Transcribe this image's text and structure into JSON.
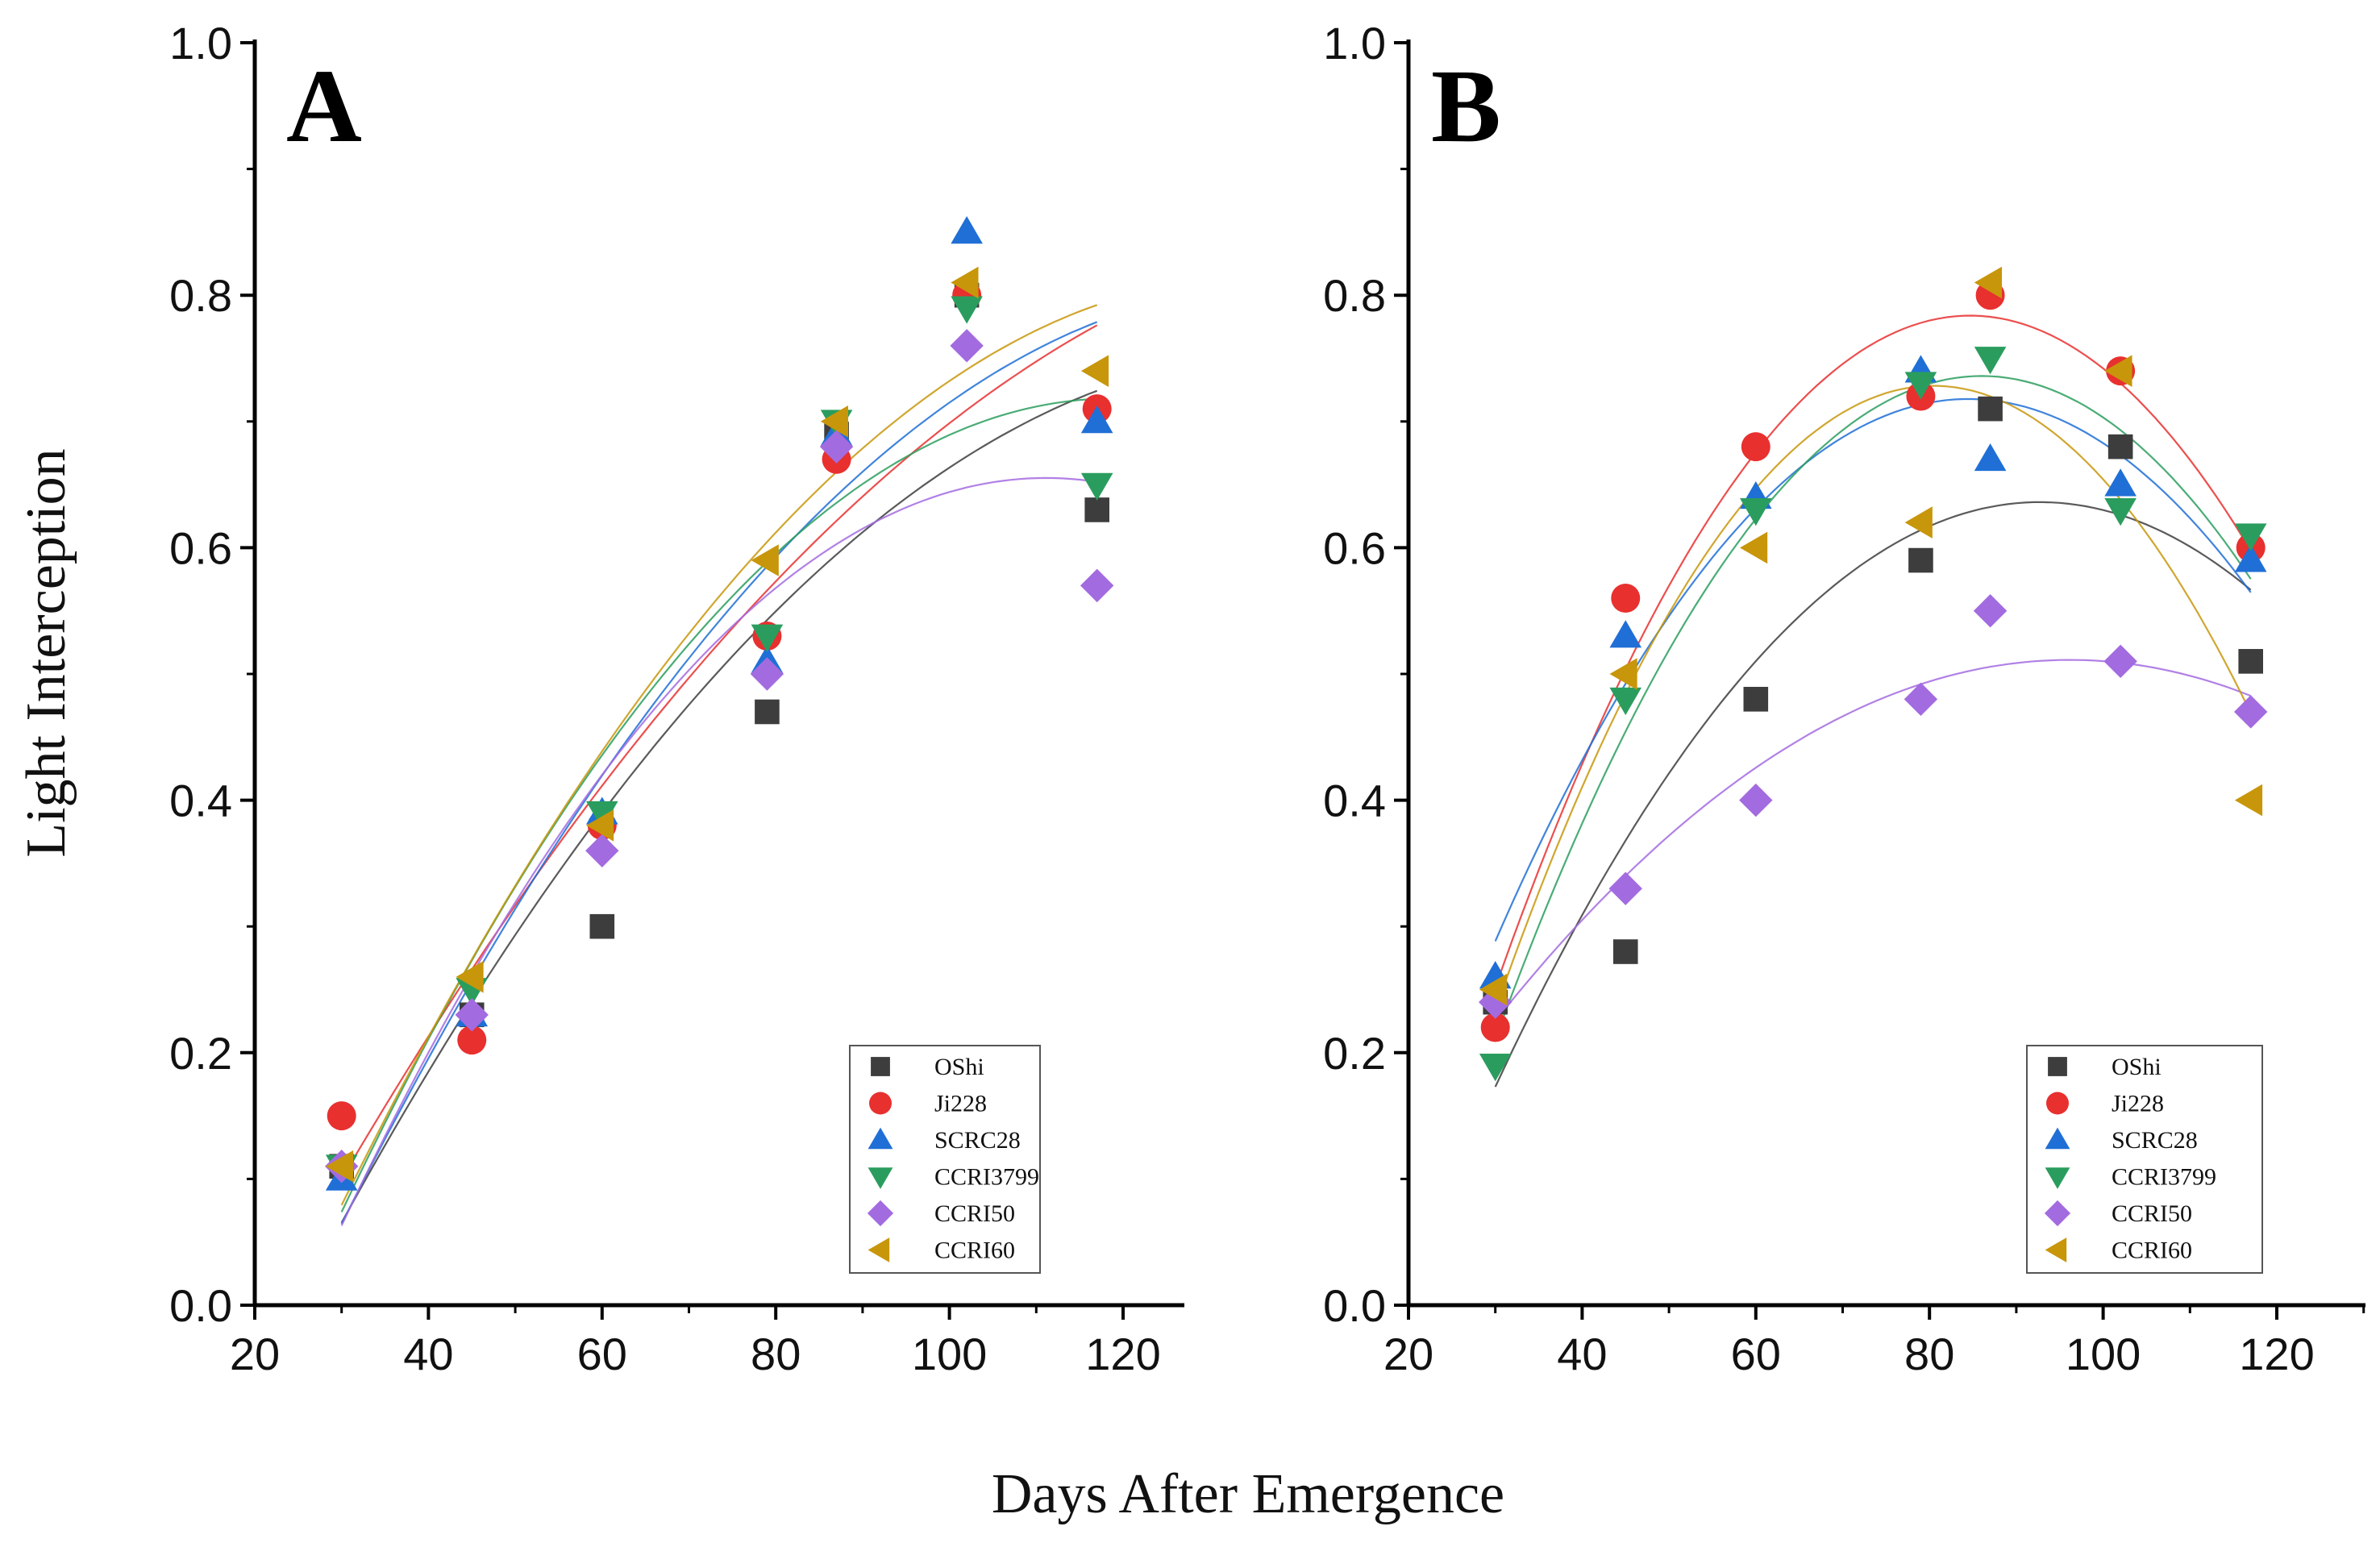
{
  "chart_data": [
    {
      "type": "scatter",
      "panel_label": "A",
      "xlabel": "Days After Emergence",
      "ylabel": "Light Interception",
      "xlim": [
        20,
        127
      ],
      "ylim": [
        0,
        1.0
      ],
      "xticks": [
        20,
        40,
        60,
        80,
        100,
        120
      ],
      "yticks": [
        "0.0",
        "0.2",
        "0.4",
        "0.6",
        "0.8",
        "1.0"
      ],
      "legend_position": "bottom-right",
      "fit": "quadratic",
      "x": [
        30,
        45,
        60,
        79,
        87,
        102,
        117
      ],
      "series": [
        {
          "name": "OShi",
          "marker": "square",
          "color": "#3d3d3d",
          "values": [
            0.11,
            0.23,
            0.3,
            0.47,
            0.69,
            0.8,
            0.63
          ]
        },
        {
          "name": "Ji228",
          "marker": "circle",
          "color": "#e8302f",
          "values": [
            0.15,
            0.21,
            0.38,
            0.53,
            0.67,
            0.8,
            0.71
          ]
        },
        {
          "name": "SCRC28",
          "marker": "triangle-up",
          "color": "#1f6fd6",
          "values": [
            0.1,
            0.23,
            0.39,
            0.51,
            0.69,
            0.85,
            0.7
          ]
        },
        {
          "name": "CCRI3799",
          "marker": "triangle-down",
          "color": "#2a9d5e",
          "values": [
            0.11,
            0.25,
            0.39,
            0.53,
            0.7,
            0.79,
            0.65
          ]
        },
        {
          "name": "CCRI50",
          "marker": "diamond",
          "color": "#a36be0",
          "values": [
            0.11,
            0.23,
            0.36,
            0.5,
            0.68,
            0.76,
            0.57
          ]
        },
        {
          "name": "CCRI60",
          "marker": "triangle-left",
          "color": "#c8960a",
          "values": [
            0.11,
            0.26,
            0.38,
            0.59,
            0.7,
            0.81,
            0.74
          ]
        }
      ]
    },
    {
      "type": "scatter",
      "panel_label": "B",
      "xlabel": "Days After Emergence",
      "ylabel": "Light Interception",
      "xlim": [
        20,
        127
      ],
      "ylim": [
        0,
        1.0
      ],
      "xticks": [
        20,
        40,
        60,
        80,
        100,
        120
      ],
      "yticks": [
        "0.0",
        "0.2",
        "0.4",
        "0.6",
        "0.8",
        "1.0"
      ],
      "legend_position": "bottom-right",
      "fit": "quadratic",
      "x": [
        30,
        45,
        60,
        79,
        87,
        102,
        117
      ],
      "series": [
        {
          "name": "OShi",
          "marker": "square",
          "color": "#3d3d3d",
          "values": [
            0.24,
            0.28,
            0.48,
            0.59,
            0.71,
            0.68,
            0.51
          ]
        },
        {
          "name": "Ji228",
          "marker": "circle",
          "color": "#e8302f",
          "values": [
            0.22,
            0.56,
            0.68,
            0.72,
            0.8,
            0.74,
            0.6
          ]
        },
        {
          "name": "SCRC28",
          "marker": "triangle-up",
          "color": "#1f6fd6",
          "values": [
            0.26,
            0.53,
            0.64,
            0.74,
            0.67,
            0.65,
            0.59
          ]
        },
        {
          "name": "CCRI3799",
          "marker": "triangle-down",
          "color": "#2a9d5e",
          "values": [
            0.19,
            0.48,
            0.63,
            0.73,
            0.75,
            0.63,
            0.61
          ]
        },
        {
          "name": "CCRI50",
          "marker": "diamond",
          "color": "#a36be0",
          "values": [
            0.24,
            0.33,
            0.4,
            0.48,
            0.55,
            0.51,
            0.47
          ]
        },
        {
          "name": "CCRI60",
          "marker": "triangle-left",
          "color": "#c8960a",
          "values": [
            0.25,
            0.5,
            0.6,
            0.62,
            0.81,
            0.74,
            0.4
          ]
        }
      ]
    }
  ]
}
